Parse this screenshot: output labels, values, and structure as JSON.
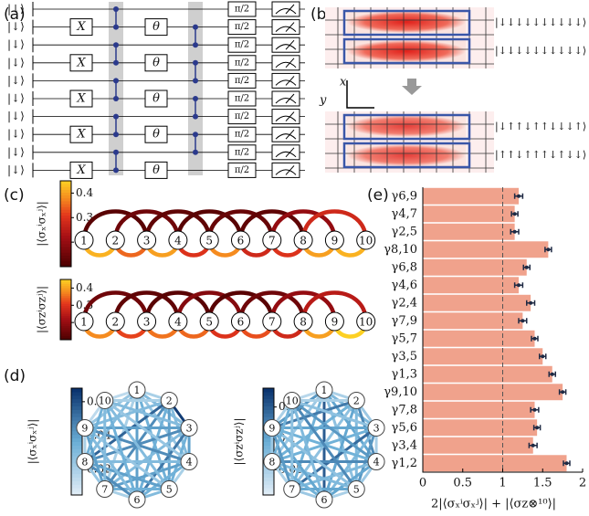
{
  "panel_a": {
    "label": "(a)",
    "qubits": 10,
    "initial_state": "|↓⟩",
    "gate_x": "X",
    "gate_theta": "θ",
    "gate_pulse": "π/2"
  },
  "panel_b": {
    "label": "(b)",
    "axis_x": "x",
    "axis_y": "y",
    "top_states": [
      "|↓↓↓↓↓↓↓↓↓↓⟩",
      "|↓↓↓↓↓↓↓↓↓↓⟩"
    ],
    "bottom_states": [
      "|↓↑↑↓↑↑↓↓↓↑⟩",
      "|↑↑↓↑↑↑↓↑↓↓⟩"
    ]
  },
  "panel_c": {
    "label": "(c)",
    "nodes": [
      "1",
      "2",
      "3",
      "4",
      "5",
      "6",
      "7",
      "8",
      "9",
      "10"
    ],
    "clim": [
      0.1,
      0.45
    ],
    "cticks": [
      0.2,
      0.3,
      0.4
    ],
    "top": {
      "colorbar_label": "|⟨σₓⁱσₓʲ⟩|",
      "edges": [
        {
          "pair": [
            1,
            2
          ],
          "value": 0.42
        },
        {
          "pair": [
            2,
            3
          ],
          "value": 0.35
        },
        {
          "pair": [
            3,
            4
          ],
          "value": 0.4
        },
        {
          "pair": [
            4,
            5
          ],
          "value": 0.3
        },
        {
          "pair": [
            5,
            6
          ],
          "value": 0.38
        },
        {
          "pair": [
            6,
            7
          ],
          "value": 0.28
        },
        {
          "pair": [
            7,
            8
          ],
          "value": 0.3
        },
        {
          "pair": [
            8,
            9
          ],
          "value": 0.4
        },
        {
          "pair": [
            9,
            10
          ],
          "value": 0.42
        },
        {
          "pair": [
            1,
            3
          ],
          "value": 0.12
        },
        {
          "pair": [
            2,
            4
          ],
          "value": 0.15
        },
        {
          "pair": [
            3,
            5
          ],
          "value": 0.13
        },
        {
          "pair": [
            4,
            6
          ],
          "value": 0.12
        },
        {
          "pair": [
            5,
            7
          ],
          "value": 0.14
        },
        {
          "pair": [
            6,
            8
          ],
          "value": 0.13
        },
        {
          "pair": [
            7,
            9
          ],
          "value": 0.2
        },
        {
          "pair": [
            8,
            10
          ],
          "value": 0.28
        }
      ]
    },
    "bottom": {
      "colorbar_label": "|⟨σzⁱσzʲ⟩|",
      "edges": [
        {
          "pair": [
            1,
            2
          ],
          "value": 0.38
        },
        {
          "pair": [
            2,
            3
          ],
          "value": 0.32
        },
        {
          "pair": [
            3,
            4
          ],
          "value": 0.36
        },
        {
          "pair": [
            4,
            5
          ],
          "value": 0.35
        },
        {
          "pair": [
            5,
            6
          ],
          "value": 0.3
        },
        {
          "pair": [
            6,
            7
          ],
          "value": 0.33
        },
        {
          "pair": [
            7,
            8
          ],
          "value": 0.28
        },
        {
          "pair": [
            8,
            9
          ],
          "value": 0.4
        },
        {
          "pair": [
            9,
            10
          ],
          "value": 0.45
        },
        {
          "pair": [
            1,
            3
          ],
          "value": 0.15
        },
        {
          "pair": [
            2,
            4
          ],
          "value": 0.13
        },
        {
          "pair": [
            3,
            5
          ],
          "value": 0.12
        },
        {
          "pair": [
            4,
            6
          ],
          "value": 0.18
        },
        {
          "pair": [
            5,
            7
          ],
          "value": 0.12
        },
        {
          "pair": [
            6,
            8
          ],
          "value": 0.15
        },
        {
          "pair": [
            7,
            9
          ],
          "value": 0.2
        },
        {
          "pair": [
            8,
            10
          ],
          "value": 0.25
        }
      ]
    }
  },
  "panel_d": {
    "label": "(d)",
    "nodes": [
      "1",
      "2",
      "3",
      "4",
      "5",
      "6",
      "7",
      "8",
      "9",
      "10"
    ],
    "pairs": [
      [
        1,
        2
      ],
      [
        1,
        3
      ],
      [
        1,
        4
      ],
      [
        1,
        5
      ],
      [
        1,
        6
      ],
      [
        1,
        7
      ],
      [
        1,
        8
      ],
      [
        1,
        9
      ],
      [
        1,
        10
      ],
      [
        2,
        3
      ],
      [
        2,
        4
      ],
      [
        2,
        5
      ],
      [
        2,
        6
      ],
      [
        2,
        7
      ],
      [
        2,
        8
      ],
      [
        2,
        9
      ],
      [
        2,
        10
      ],
      [
        3,
        4
      ],
      [
        3,
        5
      ],
      [
        3,
        6
      ],
      [
        3,
        7
      ],
      [
        3,
        8
      ],
      [
        3,
        9
      ],
      [
        3,
        10
      ],
      [
        4,
        5
      ],
      [
        4,
        6
      ],
      [
        4,
        7
      ],
      [
        4,
        8
      ],
      [
        4,
        9
      ],
      [
        4,
        10
      ],
      [
        5,
        6
      ],
      [
        5,
        7
      ],
      [
        5,
        8
      ],
      [
        5,
        9
      ],
      [
        5,
        10
      ],
      [
        6,
        7
      ],
      [
        6,
        8
      ],
      [
        6,
        9
      ],
      [
        6,
        10
      ],
      [
        7,
        8
      ],
      [
        7,
        9
      ],
      [
        7,
        10
      ],
      [
        8,
        9
      ],
      [
        8,
        10
      ],
      [
        9,
        10
      ]
    ],
    "left": {
      "colorbar_label": "|⟨σₓⁱσₓʲ⟩|",
      "clim": [
        0.005,
        0.068
      ],
      "cticks": [
        0.02,
        0.04,
        0.06
      ],
      "values": [
        0.02,
        0.03,
        0.025,
        0.035,
        0.04,
        0.02,
        0.03,
        0.025,
        0.015,
        0.065,
        0.03,
        0.04,
        0.035,
        0.045,
        0.055,
        0.03,
        0.02,
        0.04,
        0.035,
        0.05,
        0.03,
        0.045,
        0.04,
        0.03,
        0.02,
        0.035,
        0.04,
        0.03,
        0.045,
        0.025,
        0.03,
        0.035,
        0.04,
        0.025,
        0.03,
        0.02,
        0.045,
        0.03,
        0.035,
        0.025,
        0.04,
        0.03,
        0.02,
        0.035,
        0.015
      ]
    },
    "right": {
      "colorbar_label": "|⟨σzⁱσzʲ⟩|",
      "clim": [
        0.01,
        0.18
      ],
      "cticks": [
        0.05,
        0.1,
        0.15
      ],
      "values": [
        0.05,
        0.08,
        0.1,
        0.07,
        0.15,
        0.09,
        0.06,
        0.11,
        0.04,
        0.06,
        0.12,
        0.08,
        0.1,
        0.07,
        0.09,
        0.13,
        0.05,
        0.05,
        0.11,
        0.08,
        0.14,
        0.09,
        0.1,
        0.07,
        0.06,
        0.1,
        0.08,
        0.12,
        0.09,
        0.11,
        0.05,
        0.1,
        0.08,
        0.07,
        0.12,
        0.06,
        0.09,
        0.1,
        0.08,
        0.05,
        0.11,
        0.07,
        0.06,
        0.09,
        0.05
      ]
    }
  },
  "chart_data": {
    "type": "hbar",
    "label": "(e)",
    "categories": [
      "γ6,9",
      "γ4,7",
      "γ2,5",
      "γ8,10",
      "γ6,8",
      "γ4,6",
      "γ2,4",
      "γ7,9",
      "γ5,7",
      "γ3,5",
      "γ1,3",
      "γ9,10",
      "γ7,8",
      "γ5,6",
      "γ3,4",
      "γ1,2"
    ],
    "values": [
      1.2,
      1.15,
      1.15,
      1.57,
      1.3,
      1.2,
      1.35,
      1.25,
      1.4,
      1.5,
      1.62,
      1.75,
      1.4,
      1.43,
      1.38,
      1.8
    ],
    "errors": [
      0.05,
      0.04,
      0.05,
      0.04,
      0.04,
      0.05,
      0.05,
      0.05,
      0.04,
      0.04,
      0.04,
      0.04,
      0.05,
      0.04,
      0.05,
      0.04
    ],
    "color": "#f0a28c",
    "xlim": [
      0,
      2
    ],
    "xticks": [
      0,
      0.5,
      1,
      1.5,
      2
    ],
    "reference_line": 1,
    "xlabel": "2|⟨σₓⁱσₓʲ⟩| + |⟨σz⊗¹⁰⟩|"
  }
}
